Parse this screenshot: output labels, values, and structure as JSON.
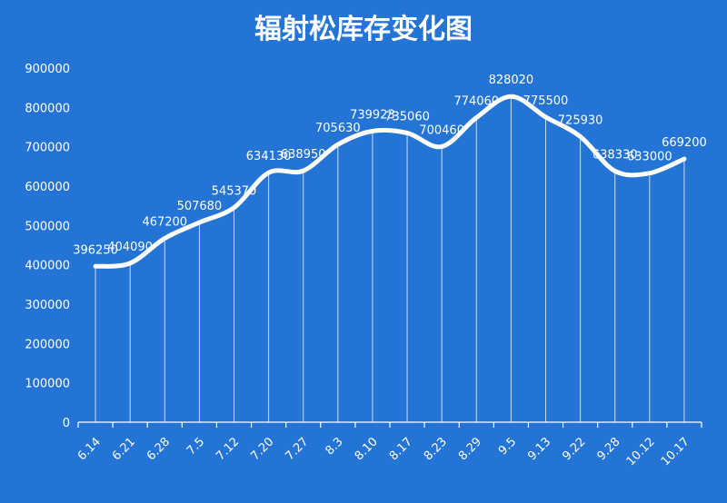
{
  "chart_data": {
    "type": "line",
    "title": "辐射松库存变化图",
    "categories": [
      "6.14",
      "6.21",
      "6.28",
      "7.5",
      "7.12",
      "7.20",
      "7.27",
      "8.3",
      "8.10",
      "8.17",
      "8.23",
      "8.29",
      "9.5",
      "9.13",
      "9.22",
      "9.28",
      "10.12",
      "10.17"
    ],
    "series": [
      {
        "values": [
          396250,
          404090,
          467200,
          507680,
          545370,
          634130,
          638950,
          705630,
          739923,
          735060,
          700460,
          774060,
          828020,
          775500,
          725930,
          638330,
          633000,
          669200
        ]
      }
    ],
    "ylim": [
      0,
      900000
    ],
    "yticks": [
      "0",
      "100000",
      "200000",
      "300000",
      "400000",
      "500000",
      "600000",
      "700000",
      "800000",
      "900000"
    ],
    "data_labels": [
      "396250",
      "404090",
      "467200",
      "507680",
      "545370",
      "634130",
      "638950",
      "705630",
      "739923",
      "735060",
      "700460",
      "774060",
      "828020",
      "775500",
      "725930",
      "638330",
      "633000",
      "669200"
    ],
    "xlabel": "",
    "ylabel": "",
    "grid": false,
    "legend": "none",
    "colors": {
      "background": "#2474d6",
      "line": "#ffffff",
      "text": "#ffffff"
    }
  }
}
